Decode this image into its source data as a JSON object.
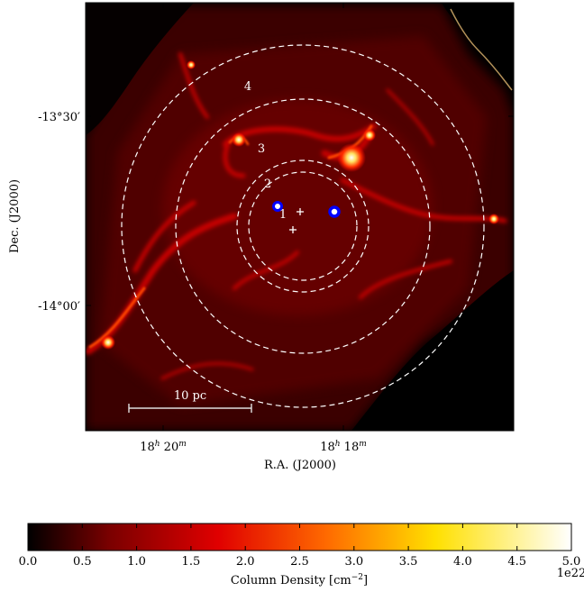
{
  "chart_data": [
    {
      "type": "heatmap",
      "title": "",
      "xlabel": "R.A. (J2000)",
      "ylabel": "Dec. (J2000)",
      "x_ticks": [
        {
          "label_main": "18",
          "label_h": "h",
          "label_min": " 20",
          "label_m": "m"
        },
        {
          "label_main": "18",
          "label_h": "h",
          "label_min": " 18",
          "label_m": "m"
        }
      ],
      "y_ticks": [
        "-13°30′",
        "-14°00′"
      ],
      "annuli": [
        {
          "label": "1"
        },
        {
          "label": "2"
        },
        {
          "label": "3"
        },
        {
          "label": "4"
        }
      ],
      "scale_bar": {
        "label": "10 pc"
      },
      "markers": [
        {
          "kind": "circle",
          "color": "#0000ff"
        },
        {
          "kind": "circle",
          "color": "#0000ff"
        },
        {
          "kind": "cross",
          "color": "#ffffff"
        },
        {
          "kind": "cross",
          "color": "#ffffff"
        }
      ]
    },
    {
      "type": "colorbar",
      "label": "Column Density [cm",
      "label_sup": "−2",
      "label_end": "]",
      "range": [
        0.0,
        5.0
      ],
      "ticks": [
        "0.0",
        "0.5",
        "1.0",
        "1.5",
        "2.0",
        "2.5",
        "3.0",
        "3.5",
        "4.0",
        "4.5",
        "5.0"
      ],
      "offset_text": "1e22",
      "colormap": [
        "#000000",
        "#7a0000",
        "#e00000",
        "#ff6a00",
        "#ffe000",
        "#ffffff"
      ]
    }
  ]
}
